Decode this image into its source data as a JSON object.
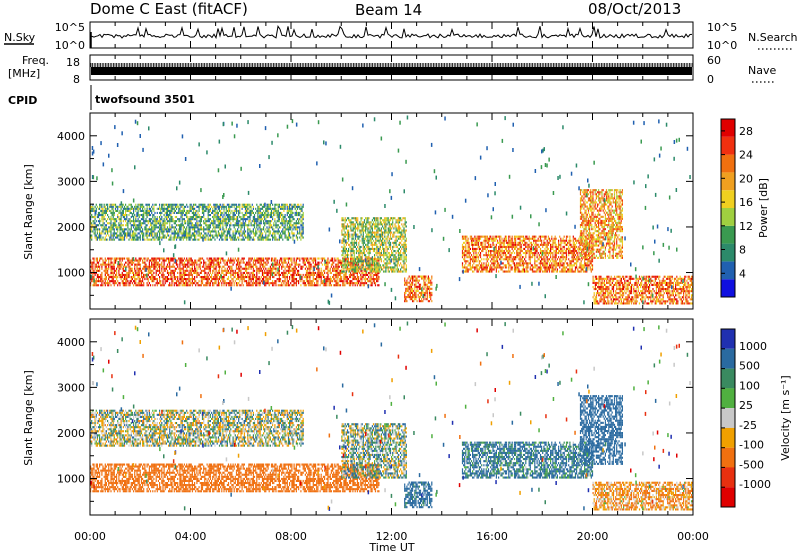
{
  "header": {
    "title": "Dome C East (fitACF)",
    "beam": "Beam 14",
    "date": "08/Oct/2013"
  },
  "top_panels": {
    "nsky_label": "N.Sky",
    "nsky_ticks": [
      "10^5",
      "10^0"
    ],
    "nsearch_label": "N.Search",
    "nsearch_ticks": [
      "10^5",
      "10^0"
    ],
    "freq_label": "Freq.",
    "freq_unit": "[MHz]",
    "freq_ticks": [
      "18",
      "8"
    ],
    "nave_label": "Nave",
    "nave_ticks": [
      "60",
      "0"
    ],
    "cpid_label": "CPID",
    "cpid_value": "twofsound 3501"
  },
  "time_axis": {
    "label": "Time UT",
    "ticks": [
      "00:00",
      "04:00",
      "08:00",
      "12:00",
      "16:00",
      "20:00",
      "00:00"
    ]
  },
  "range_axis": {
    "label": "Slant Range [km]",
    "ticks": [
      "4000",
      "3000",
      "2000",
      "1000"
    ]
  },
  "power_colorbar": {
    "label": "Power [dB]",
    "ticks": [
      "28",
      "24",
      "20",
      "16",
      "12",
      "8",
      "4"
    ],
    "colors": [
      "#1010e0",
      "#2060b0",
      "#2c8a6a",
      "#3a9a50",
      "#a0d040",
      "#f0d020",
      "#f0a020",
      "#f07010",
      "#f03010",
      "#e00000"
    ]
  },
  "velocity_colorbar": {
    "label": "Velocity [m s⁻¹]",
    "ticks": [
      "1000",
      "500",
      "100",
      "25",
      "-25",
      "-100",
      "-500",
      "-1000"
    ],
    "colors": [
      "#2030b0",
      "#2a6aa0",
      "#3a8a60",
      "#50b040",
      "#c8c8c8",
      "#f0a000",
      "#f07010",
      "#e83010",
      "#e00000"
    ]
  },
  "chart_data": {
    "type": "heatmap",
    "panels": [
      "Power (dB)",
      "Velocity (m s^-1)"
    ],
    "x_range_hours": [
      0,
      24
    ],
    "y_range_km": [
      200,
      4500
    ],
    "power_range_db": [
      0,
      30
    ],
    "velocity_range_ms": [
      -1000,
      1000
    ],
    "echo_regions": [
      {
        "x": [
          0.0,
          11.5
        ],
        "y": [
          700,
          1300
        ],
        "power_db": 24,
        "velocity_ms": -300
      },
      {
        "x": [
          0.0,
          8.5
        ],
        "y": [
          1700,
          2500
        ],
        "power_db": 10,
        "velocity_ms": 20
      },
      {
        "x": [
          10.0,
          12.6
        ],
        "y": [
          1000,
          2200
        ],
        "power_db": 14,
        "velocity_ms": 50
      },
      {
        "x": [
          12.5,
          13.6
        ],
        "y": [
          350,
          900
        ],
        "power_db": 22,
        "velocity_ms": 200
      },
      {
        "x": [
          14.8,
          20.0
        ],
        "y": [
          1000,
          1800
        ],
        "power_db": 22,
        "velocity_ms": 150
      },
      {
        "x": [
          19.5,
          21.2
        ],
        "y": [
          1300,
          2800
        ],
        "power_db": 20,
        "velocity_ms": 300
      },
      {
        "x": [
          20.0,
          24.0
        ],
        "y": [
          300,
          900
        ],
        "power_db": 22,
        "velocity_ms": -100
      }
    ]
  }
}
